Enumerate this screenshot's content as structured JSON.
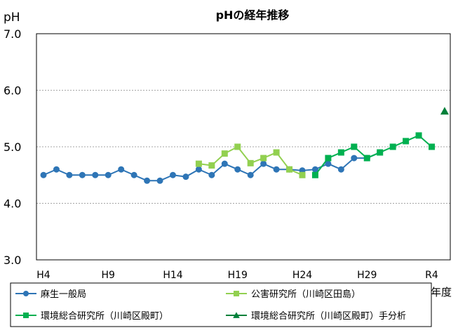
{
  "chart_data": {
    "type": "line",
    "title": "pHの経年推移",
    "ylabel": "pH",
    "xlabel": "年度",
    "ylim": [
      3.0,
      7.0
    ],
    "yticks": [
      "3.0",
      "4.0",
      "5.0",
      "6.0",
      "7.0"
    ],
    "grid": true,
    "x_categories": [
      "H4",
      "H5",
      "H6",
      "H7",
      "H8",
      "H9",
      "H10",
      "H11",
      "H12",
      "H13",
      "H14",
      "H15",
      "H16",
      "H17",
      "H18",
      "H19",
      "H20",
      "H21",
      "H22",
      "H23",
      "H24",
      "H25",
      "H26",
      "H27",
      "H28",
      "H29",
      "H30",
      "R1",
      "R2",
      "R3",
      "R4",
      "R5"
    ],
    "x_tick_labels": [
      {
        "label": "H4",
        "index": 0
      },
      {
        "label": "H9",
        "index": 5
      },
      {
        "label": "H14",
        "index": 10
      },
      {
        "label": "H19",
        "index": 15
      },
      {
        "label": "H24",
        "index": 20
      },
      {
        "label": "H29",
        "index": 25
      },
      {
        "label": "R4",
        "index": 30
      }
    ],
    "series": [
      {
        "name": "麻生一般局",
        "color": "#2e75b6",
        "marker": "circle",
        "points": [
          [
            0,
            4.5
          ],
          [
            1,
            4.6
          ],
          [
            2,
            4.5
          ],
          [
            3,
            4.5
          ],
          [
            4,
            4.5
          ],
          [
            5,
            4.5
          ],
          [
            6,
            4.6
          ],
          [
            7,
            4.5
          ],
          [
            8,
            4.4
          ],
          [
            9,
            4.4
          ],
          [
            10,
            4.5
          ],
          [
            11,
            4.47
          ],
          [
            12,
            4.6
          ],
          [
            13,
            4.5
          ],
          [
            14,
            4.7
          ],
          [
            15,
            4.6
          ],
          [
            16,
            4.5
          ],
          [
            17,
            4.7
          ],
          [
            18,
            4.6
          ],
          [
            19,
            4.6
          ],
          [
            20,
            4.58
          ],
          [
            21,
            4.6
          ],
          [
            22,
            4.7
          ],
          [
            23,
            4.6
          ],
          [
            24,
            4.8
          ],
          [
            25,
            4.8
          ],
          [
            26,
            4.9
          ]
        ]
      },
      {
        "name": "公害研究所（川崎区田島）",
        "color": "#92d050",
        "marker": "square",
        "points": [
          [
            12,
            4.7
          ],
          [
            13,
            4.67
          ],
          [
            14,
            4.88
          ],
          [
            15,
            5.0
          ],
          [
            16,
            4.71
          ],
          [
            17,
            4.8
          ],
          [
            18,
            4.9
          ],
          [
            19,
            4.6
          ],
          [
            20,
            4.5
          ]
        ]
      },
      {
        "name": "環境総合研究所（川崎区殿町）",
        "color": "#00b050",
        "marker": "square",
        "points": [
          [
            21,
            4.5
          ],
          [
            22,
            4.8
          ],
          [
            23,
            4.9
          ],
          [
            24,
            5.0
          ],
          [
            25,
            4.8
          ],
          [
            26,
            4.9
          ],
          [
            27,
            5.0
          ],
          [
            28,
            5.1
          ],
          [
            29,
            5.2
          ],
          [
            30,
            5.0
          ]
        ]
      },
      {
        "name": "環境総合研究所（川崎区殿町）手分析",
        "color": "#00803a",
        "marker": "triangle",
        "points": [
          [
            31,
            5.63
          ]
        ]
      }
    ],
    "legend_placement": "bottom"
  }
}
